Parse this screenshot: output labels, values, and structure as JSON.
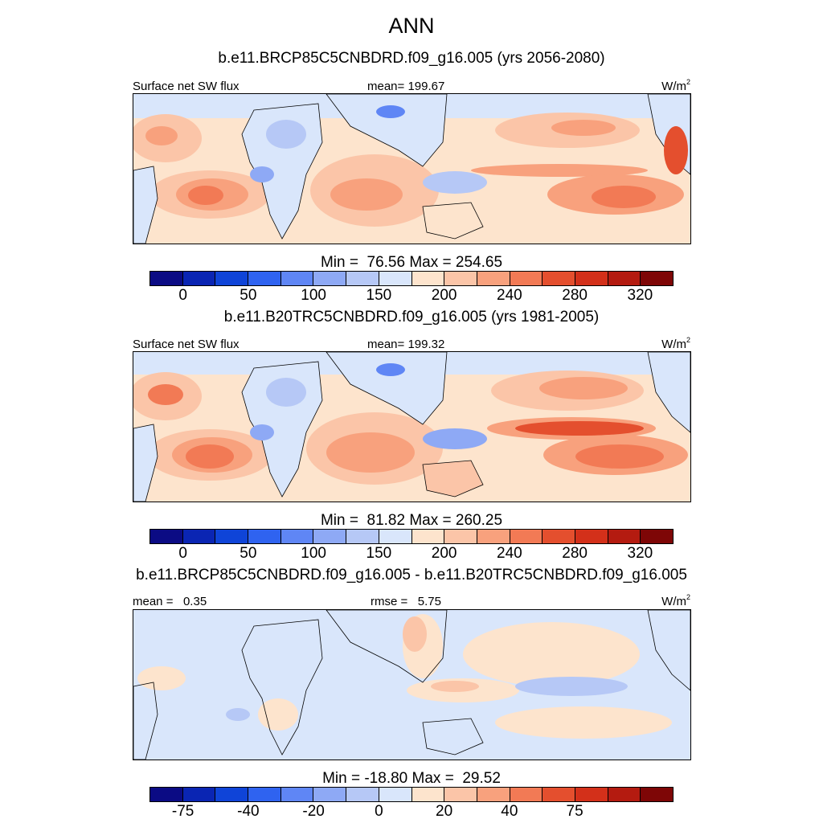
{
  "title": "ANN",
  "colors": {
    "palette": [
      "#0b0b84",
      "#0a25b3",
      "#0f44d8",
      "#2f63f0",
      "#5f86f5",
      "#8ea9f5",
      "#b6c8f6",
      "#d9e6fb",
      "#fde4cd",
      "#fbc5a8",
      "#f8a17d",
      "#f27a55",
      "#e44f2e",
      "#d3301a",
      "#b41b10",
      "#7e0606"
    ],
    "land_line": "#000000"
  },
  "chart_data": [
    {
      "type": "heatmap",
      "case_title": "b.e11.BRCP85C5CNBDRD.f09_g16.005 (yrs 2056-2080)",
      "variable": "Surface net SW flux",
      "stat_label": "mean=",
      "stat_value": "199.67",
      "units_base": "W/m",
      "units_exp": "2",
      "min_label": "Min =",
      "min_value": "76.56",
      "max_label": "Max =",
      "max_value": "254.65",
      "colorbar_levels": [
        0,
        20,
        50,
        80,
        100,
        120,
        150,
        175,
        200,
        220,
        240,
        260,
        280,
        300,
        320
      ],
      "colorbar_tick_labels": [
        "0",
        "50",
        "100",
        "150",
        "200",
        "240",
        "280",
        "320"
      ]
    },
    {
      "type": "heatmap",
      "case_title": "b.e11.B20TRC5CNBDRD.f09_g16.005 (yrs 1981-2005)",
      "variable": "Surface net SW flux",
      "stat_label": "mean=",
      "stat_value": "199.32",
      "units_base": "W/m",
      "units_exp": "2",
      "min_label": "Min =",
      "min_value": "81.82",
      "max_label": "Max =",
      "max_value": "260.25",
      "colorbar_levels": [
        0,
        20,
        50,
        80,
        100,
        120,
        150,
        175,
        200,
        220,
        240,
        260,
        280,
        300,
        320
      ],
      "colorbar_tick_labels": [
        "0",
        "50",
        "100",
        "150",
        "200",
        "240",
        "280",
        "320"
      ]
    },
    {
      "type": "heatmap",
      "case_title": "b.e11.BRCP85C5CNBDRD.f09_g16.005 - b.e11.B20TRC5CNBDRD.f09_g16.005",
      "variable": "",
      "stat_label": "mean =",
      "stat_value": "0.35",
      "stat2_label": "rmse =",
      "stat2_value": "5.75",
      "units_base": "W/m",
      "units_exp": "2",
      "min_label": "Min =",
      "min_value": "-18.80",
      "max_label": "Max =",
      "max_value": "29.52",
      "colorbar_levels": [
        -100,
        -75,
        -50,
        -40,
        -30,
        -20,
        -10,
        0,
        10,
        20,
        30,
        40,
        50,
        75,
        100
      ],
      "colorbar_tick_labels": [
        "-75",
        "-40",
        "-20",
        "0",
        "20",
        "40",
        "75"
      ]
    }
  ]
}
